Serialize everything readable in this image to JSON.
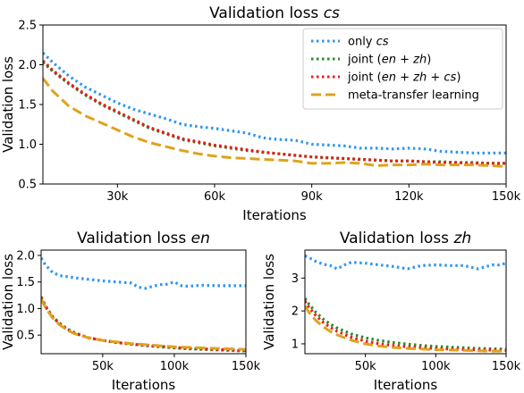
{
  "colors": {
    "only_cs": "#2f96f0",
    "joint_en_zh": "#2a8a2a",
    "joint_en_zh_cs": "#f01818",
    "meta_transfer": "#e0a21c",
    "legend_border": "#cccccc"
  },
  "chart_data": [
    {
      "type": "line",
      "title": "Validation loss cs",
      "title_parts": [
        "Validation loss ",
        "cs"
      ],
      "xlabel": "Iterations",
      "ylabel": "Validation loss",
      "xlim": [
        7000,
        150000
      ],
      "ylim": [
        0.5,
        2.5
      ],
      "xticks": [
        30000,
        60000,
        90000,
        120000,
        150000
      ],
      "xtick_labels": [
        "30k",
        "60k",
        "90k",
        "120k",
        "150k"
      ],
      "yticks": [
        0.5,
        1.0,
        1.5,
        2.0,
        2.5
      ],
      "ytick_labels": [
        "0.5",
        "1.0",
        "1.5",
        "2.0",
        "2.5"
      ],
      "grid": false,
      "legend_position": "top-right",
      "series": [
        {
          "name": "only cs",
          "name_parts": [
            "only ",
            "cs"
          ],
          "style": "dotted",
          "x": [
            7000,
            10000,
            15000,
            20000,
            25000,
            30000,
            35000,
            40000,
            45000,
            50000,
            55000,
            60000,
            65000,
            70000,
            75000,
            80000,
            85000,
            90000,
            95000,
            100000,
            105000,
            110000,
            115000,
            120000,
            125000,
            130000,
            135000,
            140000,
            145000,
            150000
          ],
          "y": [
            2.15,
            2.03,
            1.86,
            1.72,
            1.62,
            1.52,
            1.44,
            1.38,
            1.32,
            1.25,
            1.22,
            1.2,
            1.17,
            1.14,
            1.08,
            1.06,
            1.05,
            1.0,
            0.99,
            0.98,
            0.95,
            0.95,
            0.94,
            0.95,
            0.94,
            0.91,
            0.9,
            0.89,
            0.89,
            0.89
          ]
        },
        {
          "name": "joint (en + zh)",
          "name_parts": [
            "joint (",
            "en",
            " + ",
            "zh",
            ")"
          ],
          "style": "dotted",
          "x": [
            7000,
            10000,
            15000,
            20000,
            25000,
            30000,
            35000,
            40000,
            45000,
            50000,
            55000,
            60000,
            65000,
            70000,
            75000,
            80000,
            85000,
            90000,
            95000,
            100000,
            105000,
            110000,
            115000,
            120000,
            125000,
            130000,
            135000,
            140000,
            145000,
            150000
          ],
          "y": [
            2.03,
            1.92,
            1.76,
            1.62,
            1.5,
            1.4,
            1.3,
            1.2,
            1.13,
            1.06,
            1.02,
            0.98,
            0.95,
            0.92,
            0.9,
            0.88,
            0.86,
            0.84,
            0.83,
            0.82,
            0.81,
            0.8,
            0.79,
            0.79,
            0.78,
            0.78,
            0.77,
            0.77,
            0.76,
            0.76
          ]
        },
        {
          "name": "joint (en + zh + cs)",
          "name_parts": [
            "joint (",
            "en",
            " + ",
            "zh",
            " + ",
            "cs",
            ")"
          ],
          "style": "dotted",
          "x": [
            7000,
            10000,
            15000,
            20000,
            25000,
            30000,
            35000,
            40000,
            45000,
            50000,
            55000,
            60000,
            65000,
            70000,
            75000,
            80000,
            85000,
            90000,
            95000,
            100000,
            105000,
            110000,
            115000,
            120000,
            125000,
            130000,
            135000,
            140000,
            145000,
            150000
          ],
          "y": [
            2.05,
            1.93,
            1.77,
            1.63,
            1.51,
            1.41,
            1.31,
            1.21,
            1.14,
            1.07,
            1.03,
            0.99,
            0.96,
            0.93,
            0.9,
            0.88,
            0.86,
            0.84,
            0.83,
            0.82,
            0.81,
            0.8,
            0.79,
            0.79,
            0.78,
            0.77,
            0.77,
            0.76,
            0.76,
            0.76
          ]
        },
        {
          "name": "meta-transfer learning",
          "style": "dashed",
          "x": [
            7000,
            10000,
            15000,
            20000,
            25000,
            30000,
            35000,
            40000,
            45000,
            50000,
            55000,
            60000,
            65000,
            70000,
            75000,
            80000,
            85000,
            90000,
            95000,
            100000,
            105000,
            110000,
            115000,
            120000,
            125000,
            130000,
            135000,
            140000,
            145000,
            150000
          ],
          "y": [
            1.83,
            1.67,
            1.48,
            1.36,
            1.27,
            1.18,
            1.09,
            1.02,
            0.97,
            0.92,
            0.88,
            0.85,
            0.83,
            0.82,
            0.81,
            0.8,
            0.79,
            0.76,
            0.76,
            0.77,
            0.76,
            0.73,
            0.74,
            0.74,
            0.75,
            0.74,
            0.74,
            0.74,
            0.73,
            0.72
          ]
        }
      ]
    },
    {
      "type": "line",
      "title": "Validation loss en",
      "title_parts": [
        "Validation loss ",
        "en"
      ],
      "xlabel": "Iterations",
      "ylabel": "Validation loss",
      "xlim": [
        7000,
        150000
      ],
      "ylim": [
        0.15,
        2.1
      ],
      "xticks": [
        50000,
        100000,
        150000
      ],
      "xtick_labels": [
        "50k",
        "100k",
        "150k"
      ],
      "yticks": [
        0.5,
        1.0,
        1.5,
        2.0
      ],
      "ytick_labels": [
        "0.5",
        "1.0",
        "1.5",
        "2.0"
      ],
      "grid": false,
      "series": [
        {
          "name": "only cs",
          "style": "dotted",
          "x": [
            7000,
            10000,
            15000,
            20000,
            25000,
            30000,
            40000,
            50000,
            60000,
            70000,
            75000,
            80000,
            85000,
            90000,
            95000,
            100000,
            105000,
            110000,
            120000,
            130000,
            140000,
            150000
          ],
          "y": [
            1.95,
            1.82,
            1.68,
            1.62,
            1.6,
            1.58,
            1.55,
            1.52,
            1.5,
            1.48,
            1.4,
            1.38,
            1.42,
            1.45,
            1.46,
            1.5,
            1.43,
            1.42,
            1.44,
            1.43,
            1.43,
            1.43
          ]
        },
        {
          "name": "joint (en + zh)",
          "style": "dotted",
          "x": [
            7000,
            10000,
            15000,
            20000,
            25000,
            30000,
            40000,
            50000,
            60000,
            70000,
            80000,
            90000,
            100000,
            110000,
            120000,
            130000,
            140000,
            150000
          ],
          "y": [
            1.22,
            1.05,
            0.85,
            0.72,
            0.62,
            0.55,
            0.45,
            0.4,
            0.36,
            0.33,
            0.3,
            0.28,
            0.26,
            0.24,
            0.23,
            0.22,
            0.21,
            0.2
          ]
        },
        {
          "name": "joint (en + zh + cs)",
          "style": "dotted",
          "x": [
            7000,
            10000,
            15000,
            20000,
            25000,
            30000,
            40000,
            50000,
            60000,
            70000,
            80000,
            90000,
            100000,
            110000,
            120000,
            130000,
            140000,
            150000
          ],
          "y": [
            1.2,
            1.04,
            0.84,
            0.71,
            0.61,
            0.54,
            0.45,
            0.4,
            0.36,
            0.33,
            0.31,
            0.29,
            0.27,
            0.25,
            0.24,
            0.23,
            0.22,
            0.21
          ]
        },
        {
          "name": "meta-transfer learning",
          "style": "dashed",
          "x": [
            7000,
            10000,
            15000,
            20000,
            25000,
            30000,
            40000,
            50000,
            60000,
            70000,
            80000,
            90000,
            100000,
            110000,
            120000,
            130000,
            140000,
            150000
          ],
          "y": [
            1.18,
            1.02,
            0.82,
            0.69,
            0.6,
            0.53,
            0.45,
            0.4,
            0.37,
            0.34,
            0.32,
            0.3,
            0.28,
            0.27,
            0.26,
            0.25,
            0.24,
            0.23
          ]
        }
      ]
    },
    {
      "type": "line",
      "title": "Validation loss zh",
      "title_parts": [
        "Validation loss ",
        "zh"
      ],
      "xlabel": "Iterations",
      "ylabel": "Validation loss",
      "xlim": [
        7000,
        150000
      ],
      "ylim": [
        0.7,
        3.85
      ],
      "xticks": [
        50000,
        100000,
        150000
      ],
      "xtick_labels": [
        "50k",
        "100k",
        "150k"
      ],
      "yticks": [
        1,
        2,
        3
      ],
      "ytick_labels": [
        "1",
        "2",
        "3"
      ],
      "grid": false,
      "series": [
        {
          "name": "only cs",
          "style": "dotted",
          "x": [
            7000,
            10000,
            15000,
            20000,
            25000,
            30000,
            35000,
            40000,
            50000,
            60000,
            70000,
            80000,
            90000,
            100000,
            110000,
            120000,
            130000,
            140000,
            145000,
            150000
          ],
          "y": [
            3.68,
            3.62,
            3.5,
            3.42,
            3.38,
            3.28,
            3.4,
            3.48,
            3.45,
            3.4,
            3.35,
            3.28,
            3.38,
            3.4,
            3.38,
            3.38,
            3.28,
            3.4,
            3.4,
            3.45
          ]
        },
        {
          "name": "joint (en + zh)",
          "style": "dotted",
          "x": [
            7000,
            10000,
            15000,
            20000,
            25000,
            30000,
            40000,
            50000,
            60000,
            70000,
            80000,
            90000,
            100000,
            110000,
            120000,
            130000,
            140000,
            150000
          ],
          "y": [
            2.38,
            2.2,
            1.95,
            1.75,
            1.6,
            1.48,
            1.3,
            1.18,
            1.1,
            1.04,
            0.99,
            0.95,
            0.92,
            0.9,
            0.88,
            0.86,
            0.85,
            0.84
          ]
        },
        {
          "name": "joint (en + zh + cs)",
          "style": "dotted",
          "x": [
            7000,
            10000,
            15000,
            20000,
            25000,
            30000,
            40000,
            50000,
            60000,
            70000,
            80000,
            90000,
            100000,
            110000,
            120000,
            130000,
            140000,
            150000
          ],
          "y": [
            2.3,
            2.1,
            1.85,
            1.65,
            1.5,
            1.38,
            1.2,
            1.08,
            1.0,
            0.95,
            0.91,
            0.88,
            0.86,
            0.84,
            0.83,
            0.82,
            0.81,
            0.8
          ]
        },
        {
          "name": "meta-transfer learning",
          "style": "dashed",
          "x": [
            7000,
            10000,
            15000,
            20000,
            25000,
            30000,
            40000,
            50000,
            60000,
            70000,
            80000,
            90000,
            100000,
            110000,
            120000,
            130000,
            140000,
            150000
          ],
          "y": [
            2.15,
            1.95,
            1.7,
            1.52,
            1.38,
            1.27,
            1.11,
            1.0,
            0.93,
            0.89,
            0.86,
            0.84,
            0.82,
            0.81,
            0.8,
            0.79,
            0.78,
            0.78
          ]
        }
      ]
    }
  ]
}
